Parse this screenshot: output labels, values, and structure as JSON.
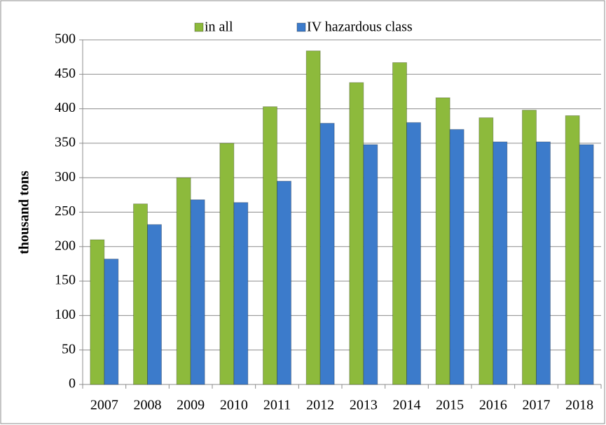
{
  "chart_data": {
    "type": "bar",
    "categories": [
      "2007",
      "2008",
      "2009",
      "2010",
      "2011",
      "2012",
      "2013",
      "2014",
      "2015",
      "2016",
      "2017",
      "2018"
    ],
    "series": [
      {
        "name": "in all",
        "color": "#8dba3c",
        "values": [
          210,
          262,
          300,
          350,
          403,
          484,
          438,
          467,
          416,
          387,
          398,
          390
        ]
      },
      {
        "name": "IV hazardous class",
        "color": "#3c7bcb",
        "values": [
          182,
          232,
          268,
          264,
          295,
          379,
          348,
          380,
          370,
          352,
          352,
          348
        ]
      }
    ],
    "y_label": "thousand tons",
    "ylim": [
      0,
      500
    ],
    "yticks": [
      0,
      50,
      100,
      150,
      200,
      250,
      300,
      350,
      400,
      450,
      500
    ],
    "grid": true,
    "legend": "top"
  }
}
